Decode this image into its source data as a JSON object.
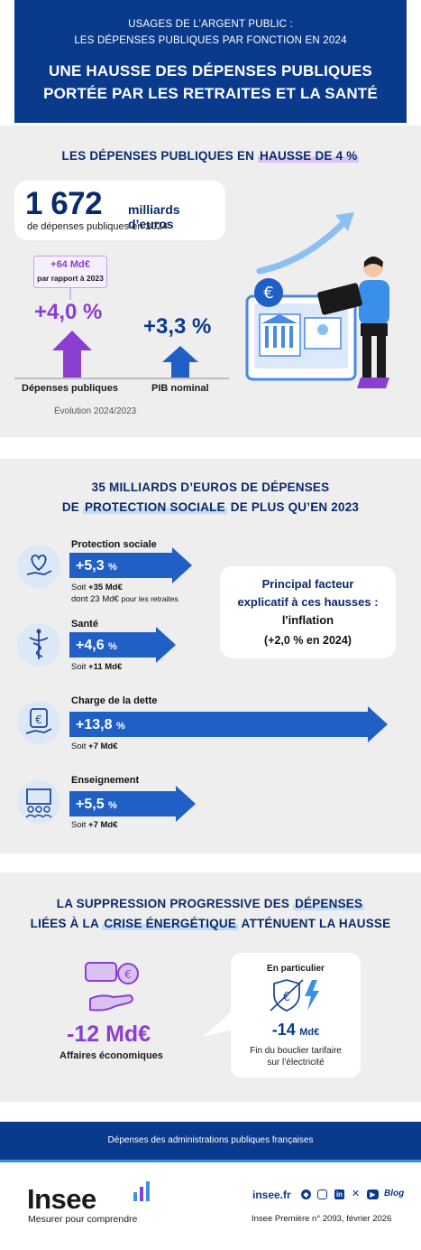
{
  "header": {
    "subtitle_line1": "USAGES DE L’ARGENT PUBLIC :",
    "subtitle_line2": "LES DÉPENSES PUBLIQUES PAR FONCTION EN 2024",
    "title_line1": "UNE HAUSSE DES DÉPENSES PUBLIQUES",
    "title_line2": "PORTÉE PAR LES RETRAITES ET LA SANTÉ"
  },
  "section1": {
    "title_pre": "LES DÉPENSES PUBLIQUES EN ",
    "title_hl": "HAUSSE DE 4 %",
    "total_value": "1 672",
    "total_unit": "milliards d’euros",
    "total_sub": "de dépenses publiques en 2024",
    "badge_value": "+64 Md€",
    "badge_sub": "par rapport à 2023",
    "depenses_pct": "+4,0 %",
    "depenses_label": "Dépenses publiques",
    "depenses_growth": 4.0,
    "pib_pct": "+3,3 %",
    "pib_label": "PIB nominal",
    "pib_growth": 3.3,
    "caption": "Évolution 2024/2023",
    "colors": {
      "purple": "#8a3fd1",
      "blue": "#1f5fc6"
    }
  },
  "section2": {
    "title_line1": "35 MILLIARDS D’EUROS DE DÉPENSES",
    "title_line2_pre": "DE ",
    "title_line2_hl": "PROTECTION SOCIALE",
    "title_line2_post": " DE PLUS QU’EN 2023",
    "items": [
      {
        "label": "Protection sociale",
        "value": "+5,3",
        "unit": "%",
        "soit": "Soit ",
        "soit_bold": "+35 Md€",
        "extra_pre": "dont 23 Md€ ",
        "extra_post": "pour les retraites",
        "icon": "heart-hand-icon",
        "growth": 5.3
      },
      {
        "label": "Santé",
        "value": "+4,6",
        "unit": "%",
        "soit": "Soit ",
        "soit_bold": "+11 Md€",
        "icon": "caduceus-icon",
        "growth": 4.6
      },
      {
        "label": "Charge de la dette",
        "value": "+13,8",
        "unit": "%",
        "soit": "Soit ",
        "soit_bold": "+7 Md€",
        "icon": "money-bag-hand-icon",
        "growth": 13.8
      },
      {
        "label": "Enseignement",
        "value": "+5,5",
        "unit": "%",
        "soit": "Soit ",
        "soit_bold": "+7 Md€",
        "icon": "classroom-icon",
        "growth": 5.5
      }
    ],
    "factor": {
      "line1": "Principal facteur",
      "line2": "explicatif à ces hausses :",
      "line3": "l'inflation",
      "line4": "(+2,0 % en 2024)"
    }
  },
  "section3": {
    "title_line1_pre": "LA SUPPRESSION PROGRESSIVE DES ",
    "title_line1_hl": "DÉPENSES",
    "title_line2_pre": "LIÉES À LA ",
    "title_line2_hl": "CRISE ÉNERGÉTIQUE",
    "title_line2_post": " ATTÉNUENT LA HAUSSE",
    "value": "-12 Md€",
    "label": "Affaires économiques",
    "card_title": "En particulier",
    "card_value": "-14",
    "card_unit": "Md€",
    "card_desc1": "Fin du bouclier tarifaire",
    "card_desc2": "sur l’électricité"
  },
  "footer": {
    "band": "Dépenses des administrations publiques françaises",
    "logo": "Insee",
    "tagline": "Mesurer pour comprendre",
    "site": "insee.fr",
    "blog": "Blog",
    "reference": "Insee Première n° 2093, février 2026"
  }
}
